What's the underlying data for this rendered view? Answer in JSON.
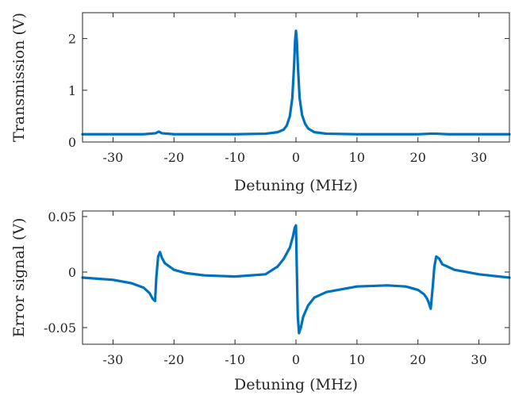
{
  "chart_data": [
    {
      "type": "line",
      "title": "",
      "xlabel": "Detuning (MHz)",
      "ylabel": "Transmission (V)",
      "xlim": [
        -35,
        35
      ],
      "ylim": [
        0,
        2.5
      ],
      "grid": false,
      "xticks": [
        -30,
        -20,
        -10,
        0,
        10,
        20,
        30
      ],
      "xtick_labels": [
        "-30",
        "-20",
        "-10",
        "0",
        "10",
        "20",
        "30"
      ],
      "yticks": [
        0,
        1,
        2
      ],
      "ytick_labels": [
        "0",
        "1",
        "2"
      ],
      "color": "#0072BD",
      "series": [
        {
          "x": [
            -35,
            -30,
            -25,
            -23,
            -22.5,
            -22,
            -20,
            -15,
            -10,
            -5,
            -3,
            -2,
            -1.5,
            -1,
            -0.6,
            -0.3,
            -0.15,
            0,
            0.15,
            0.3,
            0.6,
            1,
            1.5,
            2,
            3,
            5,
            10,
            15,
            20,
            22,
            23,
            25,
            30,
            35
          ],
          "y": [
            0.15,
            0.15,
            0.15,
            0.17,
            0.2,
            0.17,
            0.15,
            0.15,
            0.15,
            0.16,
            0.19,
            0.24,
            0.32,
            0.5,
            0.85,
            1.5,
            1.95,
            2.15,
            1.95,
            1.5,
            0.85,
            0.52,
            0.35,
            0.26,
            0.19,
            0.16,
            0.15,
            0.15,
            0.15,
            0.16,
            0.16,
            0.15,
            0.15,
            0.15
          ]
        }
      ]
    },
    {
      "type": "line",
      "title": "",
      "xlabel": "Detuning (MHz)",
      "ylabel": "Error signal (V)",
      "xlim": [
        -35,
        35
      ],
      "ylim": [
        -0.065,
        0.055
      ],
      "grid": false,
      "xticks": [
        -30,
        -20,
        -10,
        0,
        10,
        20,
        30
      ],
      "xtick_labels": [
        "-30",
        "-20",
        "-10",
        "0",
        "10",
        "20",
        "30"
      ],
      "yticks": [
        0.05,
        0,
        -0.05
      ],
      "ytick_labels": [
        "0.05",
        "0",
        "-0.05"
      ],
      "color": "#0072BD",
      "series": [
        {
          "x": [
            -35,
            -30,
            -27,
            -25,
            -24,
            -23.5,
            -23.1,
            -22.9,
            -22.6,
            -22.3,
            -22,
            -21.5,
            -20,
            -18,
            -15,
            -10,
            -5,
            -3,
            -2,
            -1,
            -0.5,
            -0.2,
            0,
            0.15,
            0.3,
            0.5,
            0.8,
            1.2,
            2,
            3,
            5,
            10,
            15,
            18,
            20,
            21,
            21.5,
            21.8,
            22.1,
            22.4,
            22.7,
            23,
            23.5,
            24,
            26,
            30,
            35
          ],
          "y": [
            -0.005,
            -0.007,
            -0.01,
            -0.014,
            -0.019,
            -0.024,
            -0.026,
            -0.005,
            0.014,
            0.018,
            0.013,
            0.008,
            0.002,
            -0.001,
            -0.003,
            -0.004,
            -0.002,
            0.005,
            0.012,
            0.022,
            0.032,
            0.04,
            0.042,
            0.0,
            -0.04,
            -0.055,
            -0.05,
            -0.04,
            -0.03,
            -0.023,
            -0.018,
            -0.013,
            -0.012,
            -0.013,
            -0.016,
            -0.02,
            -0.024,
            -0.028,
            -0.033,
            -0.015,
            0.005,
            0.014,
            0.012,
            0.007,
            0.002,
            -0.002,
            -0.005
          ]
        }
      ]
    }
  ]
}
